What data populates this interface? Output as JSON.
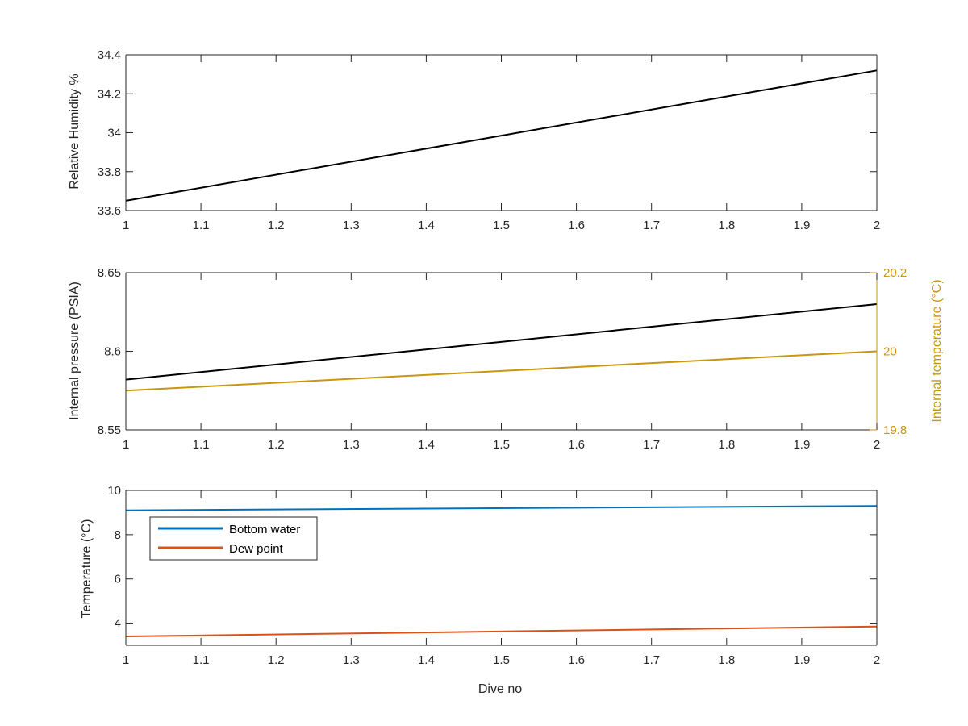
{
  "colors": {
    "axis": "#262626",
    "black_series": "#000000",
    "blue": "#0072BD",
    "orange": "#D95319",
    "gold": "#C9960C"
  },
  "chart_data": [
    {
      "type": "line",
      "xlabel": "",
      "ylabel": "Relative Humidity %",
      "xlim": [
        1,
        2
      ],
      "ylim": [
        33.6,
        34.4
      ],
      "x_ticks": [
        "1",
        "1.1",
        "1.2",
        "1.3",
        "1.4",
        "1.5",
        "1.6",
        "1.7",
        "1.8",
        "1.9",
        "2"
      ],
      "y_ticks": [
        "33.6",
        "33.8",
        "34",
        "34.2",
        "34.4"
      ],
      "grid": false,
      "series": [
        {
          "color": "#000000",
          "x": [
            1,
            2
          ],
          "y": [
            33.65,
            34.32
          ]
        }
      ]
    },
    {
      "type": "line",
      "xlabel": "",
      "ylabel": "Internal pressure (PSIA)",
      "ylabel_right": "Internal temperature (°C)",
      "xlim": [
        1,
        2
      ],
      "ylim": [
        8.55,
        8.65
      ],
      "ylim_right": [
        19.8,
        20.2
      ],
      "x_ticks": [
        "1",
        "1.1",
        "1.2",
        "1.3",
        "1.4",
        "1.5",
        "1.6",
        "1.7",
        "1.8",
        "1.9",
        "2"
      ],
      "y_ticks": [
        "8.55",
        "8.6",
        "8.65"
      ],
      "y_ticks_right": [
        "19.8",
        "20",
        "20.2"
      ],
      "grid": false,
      "series": [
        {
          "color": "#000000",
          "axis": "left",
          "x": [
            1,
            2
          ],
          "y": [
            8.582,
            8.63
          ]
        },
        {
          "color": "#C9960C",
          "axis": "right",
          "x": [
            1,
            2
          ],
          "y": [
            19.9,
            20.0
          ]
        }
      ]
    },
    {
      "type": "line",
      "xlabel": "Dive no",
      "ylabel": "Temperature (°C)",
      "xlim": [
        1,
        2
      ],
      "ylim": [
        3,
        10
      ],
      "x_ticks": [
        "1",
        "1.1",
        "1.2",
        "1.3",
        "1.4",
        "1.5",
        "1.6",
        "1.7",
        "1.8",
        "1.9",
        "2"
      ],
      "y_ticks": [
        "4",
        "6",
        "8",
        "10"
      ],
      "y_tick_values": [
        4,
        6,
        8,
        10
      ],
      "grid": false,
      "legend_position": "top-left",
      "series": [
        {
          "name": "Bottom water",
          "color": "#0072BD",
          "x": [
            1,
            2
          ],
          "y": [
            9.1,
            9.3
          ]
        },
        {
          "name": "Dew point",
          "color": "#D95319",
          "x": [
            1,
            2
          ],
          "y": [
            3.4,
            3.85
          ]
        }
      ]
    }
  ]
}
